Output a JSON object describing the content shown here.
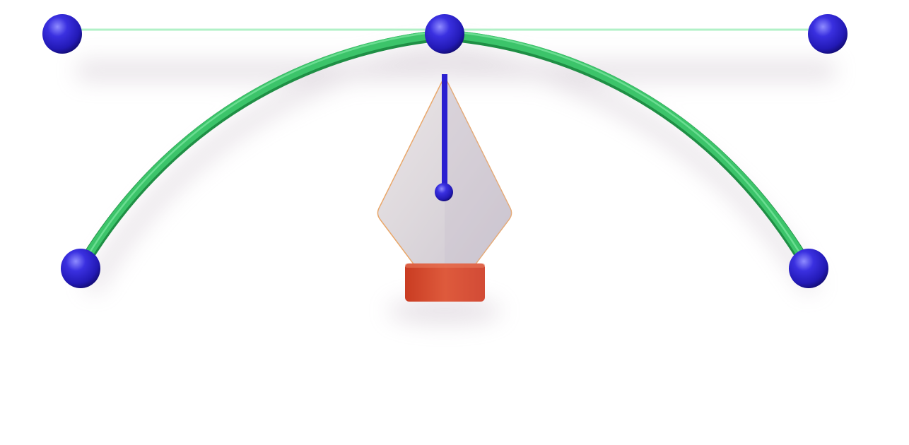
{
  "illustration": {
    "subject": "pen-tool-bezier-curve-3d-icon",
    "colors": {
      "background": "#ffffff",
      "curve": "#3cc46a",
      "curve_dark": "#1f8f45",
      "anchor": "#2b22c8",
      "anchor_highlight": "#8f8cff",
      "pen_body": "#ddd8dc",
      "pen_band": "#d9543a",
      "pen_line": "#2a1fd0"
    },
    "icons": [
      "anchor-point-icon",
      "bezier-curve-icon",
      "pen-nib-icon"
    ]
  }
}
